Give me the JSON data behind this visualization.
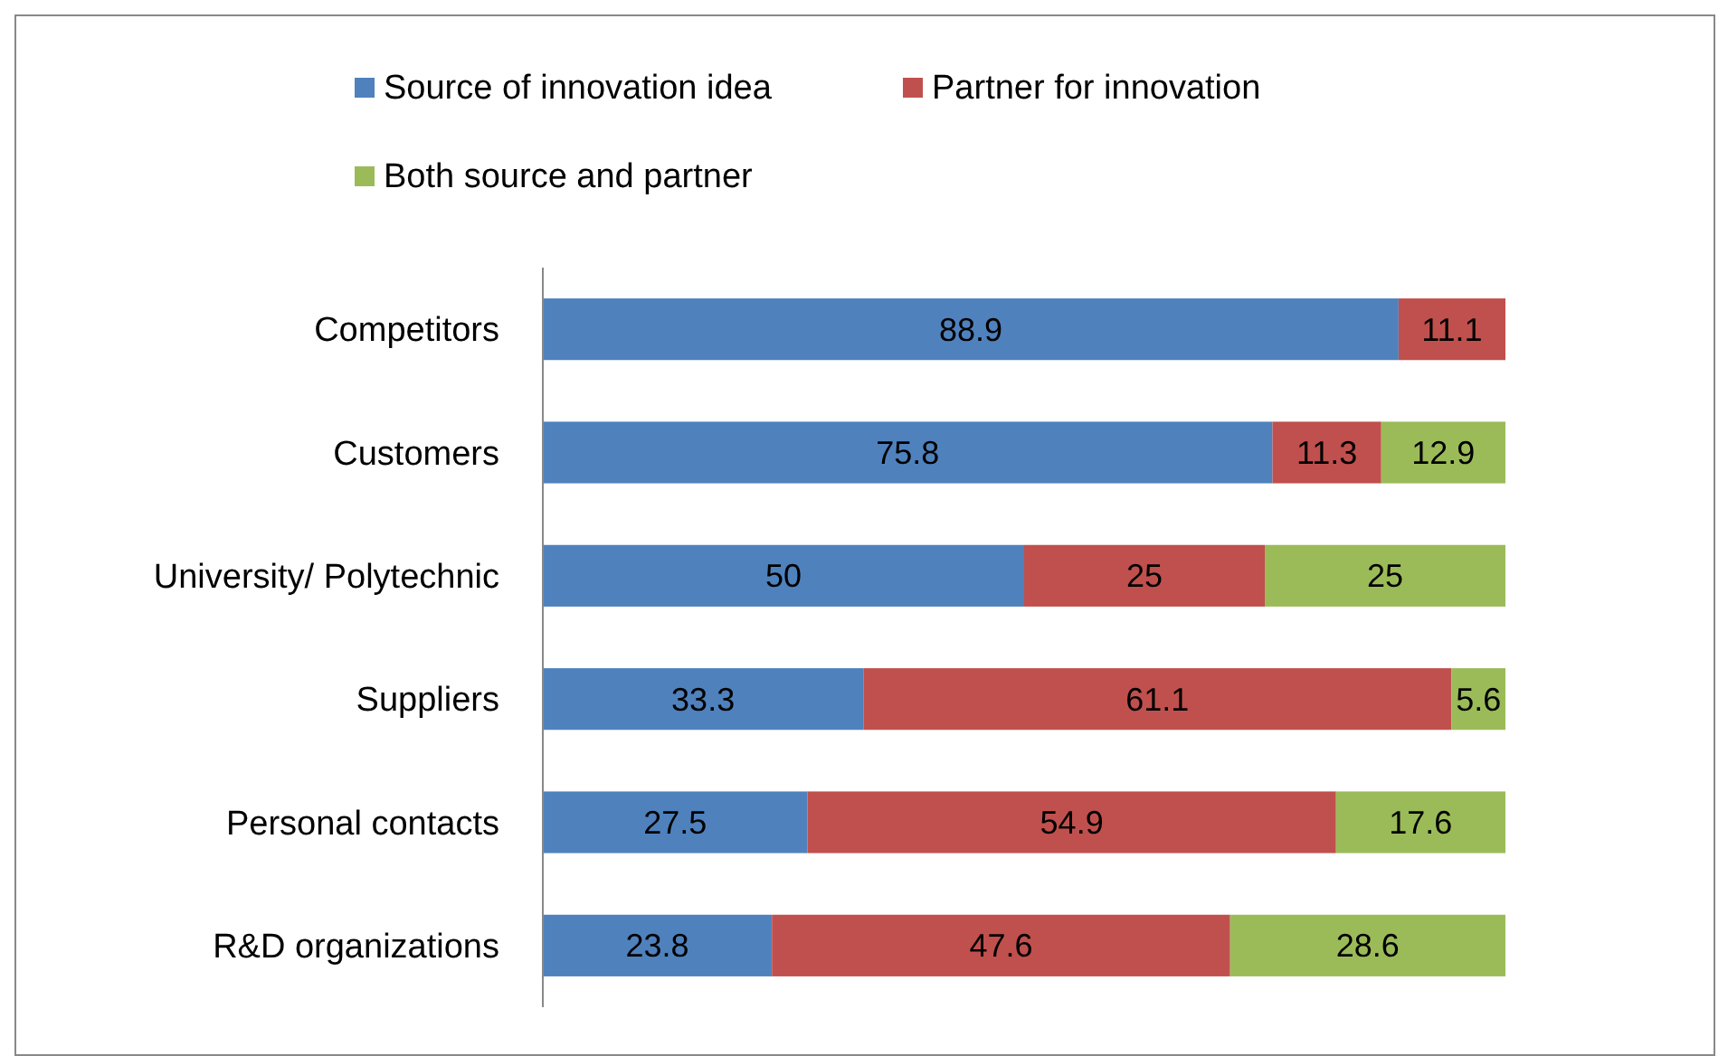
{
  "chart_data": {
    "type": "bar",
    "orientation": "horizontal",
    "stacked": true,
    "data_labels": true,
    "legend": "top",
    "categories": [
      "Competitors",
      "Customers",
      "University/ Polytechnic",
      "Suppliers",
      "Personal contacts",
      "R&D organizations"
    ],
    "series": [
      {
        "name": "Source of innovation idea",
        "color": "#4f81bd",
        "values": [
          88.9,
          75.8,
          50,
          33.3,
          27.5,
          23.8
        ]
      },
      {
        "name": "Partner for innovation",
        "color": "#c0504d",
        "values": [
          11.1,
          11.3,
          25,
          61.1,
          54.9,
          47.6
        ]
      },
      {
        "name": "Both source and partner",
        "color": "#9bbb59",
        "values": [
          null,
          12.9,
          25,
          5.6,
          17.6,
          28.6
        ]
      }
    ]
  }
}
